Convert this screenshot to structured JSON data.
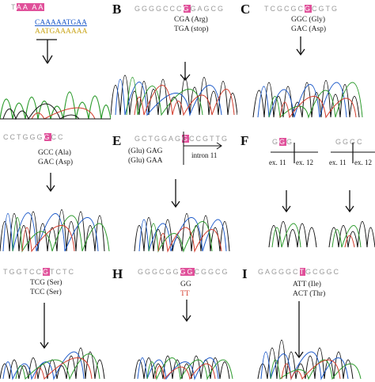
{
  "panels": [
    {
      "id": "A",
      "letter": "",
      "header": {
        "pre": "T",
        "hl": "AA  AA",
        "post": ""
      },
      "lines": [
        {
          "text": "CAAAAATGAA"
        },
        {
          "text": "AATGAAAAAA"
        }
      ],
      "labels": []
    },
    {
      "id": "B",
      "letter": "B",
      "header": {
        "pre": "GGGGCCC",
        "hl": "G",
        "post": "GAGCG"
      },
      "lines": [
        {
          "text": "CGA (Arg)"
        },
        {
          "text": "TGA (stop)"
        }
      ],
      "labels": []
    },
    {
      "id": "C",
      "letter": "C",
      "header": {
        "pre": "TCGCGC",
        "hl": "G",
        "post": "CGTG"
      },
      "lines": [
        {
          "text": "GGC (Gly)"
        },
        {
          "text": "GAC (Asp)"
        }
      ],
      "labels": []
    },
    {
      "id": "D",
      "letter": "",
      "header": {
        "pre": "CCTGGG",
        "hl": "G",
        "post": "CC"
      },
      "lines": [
        {
          "text": "GCC (Ala)"
        },
        {
          "text": "GAC (Asp)"
        }
      ],
      "labels": []
    },
    {
      "id": "E",
      "letter": "E",
      "header": {
        "pre": "GCTGGAG",
        "hl": "G",
        "post": "CCGTTG"
      },
      "lines": [
        {
          "text": "(Glu) GAG"
        },
        {
          "text": "(Glu) GAA"
        }
      ],
      "labels": [
        "intron 11"
      ]
    },
    {
      "id": "F",
      "letter": "F",
      "header": {
        "pre": "G",
        "hl": "G",
        "post": "G"
      },
      "header2": "GGGC",
      "lines": [],
      "labels": [
        "ex. 11",
        "ex. 12",
        "ex. 11",
        "ex. 12"
      ]
    },
    {
      "id": "G",
      "letter": "",
      "header": {
        "pre": "TGGTCC",
        "hl": "G",
        "post": "TCTC"
      },
      "lines": [
        {
          "text": "TCG (Ser)"
        },
        {
          "text": "TCC (Ser)"
        }
      ],
      "labels": []
    },
    {
      "id": "H",
      "letter": "H",
      "header": {
        "pre": "GGGCGG",
        "hl": "GG",
        "post": "CGGCG"
      },
      "lines": [
        {
          "text": "GG"
        },
        {
          "text": "TT"
        }
      ],
      "labels": []
    },
    {
      "id": "I",
      "letter": "I",
      "header": {
        "pre": "GAGGGC",
        "hl": "T",
        "post": "GCGGC"
      },
      "lines": [
        {
          "text": "ATT (Ile)"
        },
        {
          "text": "ACT (Thr)"
        }
      ],
      "labels": []
    }
  ],
  "colors": {
    "highlight": "#e0509a",
    "A": "#2a9a2a",
    "C": "#1a58c9",
    "G": "#111111",
    "T": "#d33a2a",
    "grey": "#9a9a9a"
  }
}
